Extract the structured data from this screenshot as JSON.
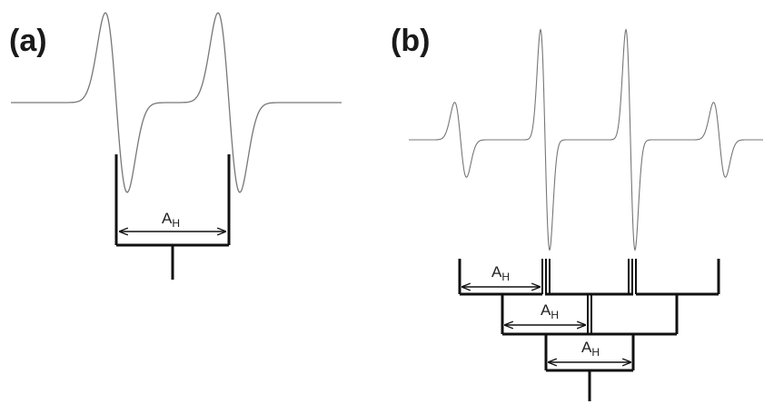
{
  "panels": {
    "a": {
      "label": "(a)",
      "coupling": {
        "symbol": "A",
        "subscript": "H"
      }
    },
    "b": {
      "label": "(b)",
      "couplings": [
        {
          "symbol": "A",
          "subscript": "H"
        },
        {
          "symbol": "A",
          "subscript": "H"
        },
        {
          "symbol": "A",
          "subscript": "H"
        }
      ]
    }
  },
  "colors": {
    "spectrum_line": "#777777",
    "stick_line": "#111111"
  }
}
